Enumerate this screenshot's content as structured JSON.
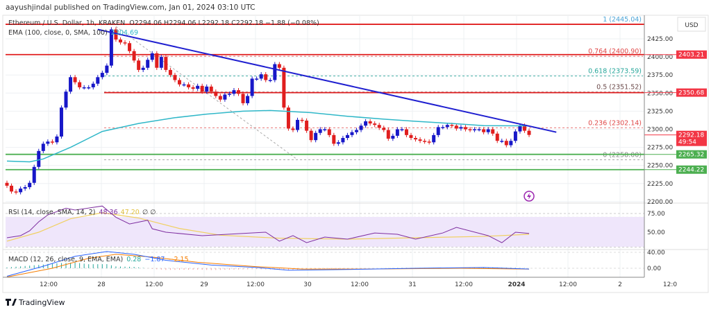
{
  "header": {
    "published": "aayushjindal published on TradingView.com, Jan 01, 2024 03:10 UTC"
  },
  "legend": {
    "symbol": "Ethereum / U.S. Dollar, 1h, KRAKEN",
    "ohlc": "O2294.06  H2294.06  L2292.18  C2292.18  −1.88 (−0.08%)",
    "ema_label": "EMA (100, close, 0, SMA, 100)",
    "ema_value": "2304.69",
    "rsi_label": "RSI (14, close, SMA, 14, 2)",
    "rsi_value": "48.36",
    "rsi_ma_value": "47.20",
    "rsi_extra": "∅  ∅",
    "macd_label": "MACD (12, 26, close, 9, EMA, EMA)",
    "macd_hist": "0.28",
    "macd_value": "−1.87",
    "macd_signal": "−2.15"
  },
  "price_axis": {
    "currency": "USD",
    "ticks": [
      "2425.00",
      "2400.00",
      "2375.00",
      "2350.00",
      "2325.00",
      "2300.00",
      "2275.00",
      "2250.00",
      "2225.00",
      "2200.00"
    ],
    "tags": [
      {
        "label": "2403.21",
        "price": 2403.21,
        "color": "#f23645"
      },
      {
        "label": "2350.68",
        "price": 2350.68,
        "color": "#f23645"
      },
      {
        "label": "2292.18",
        "price": 2292.18,
        "color": "#f23645",
        "sub": "49:54"
      },
      {
        "label": "2265.32",
        "price": 2265.32,
        "color": "#4caf50"
      },
      {
        "label": "2244.22",
        "price": 2244.22,
        "color": "#4caf50"
      }
    ]
  },
  "rsi_axis": {
    "ticks": [
      "75.00",
      "50.00"
    ]
  },
  "macd_axis": {
    "ticks": [
      "40.00",
      "0.00"
    ]
  },
  "time_axis": {
    "labels": [
      "12:00",
      "28",
      "12:00",
      "29",
      "12:00",
      "30",
      "12:00",
      "31",
      "12:00",
      "2024",
      "12:00",
      "2",
      "12:0"
    ]
  },
  "levels": {
    "red": [
      2445.04,
      2403.21,
      2350.68
    ],
    "green": [
      2265.32,
      2244.22
    ]
  },
  "fib": [
    {
      "label": "1 (2445.04)",
      "price": 2445.04,
      "color": "#4ba3d6"
    },
    {
      "label": "0.764 (2400.90)",
      "price": 2400.9,
      "color": "#e04848"
    },
    {
      "label": "0.618 (2373.59)",
      "price": 2373.59,
      "color": "#26a69a"
    },
    {
      "label": "0.5 (2351.52)",
      "price": 2351.52,
      "color": "#6b4a4a"
    },
    {
      "label": "0.236 (2302.14)",
      "price": 2302.14,
      "color": "#e04848"
    },
    {
      "label": "0 (2258.00)",
      "price": 2258.0,
      "color": "#888888"
    }
  ],
  "colors": {
    "up": "#1717c8",
    "down": "#e01e1e",
    "ema": "#2fb7c8",
    "trend": "#1f1fd0",
    "rsi": "#7e2ea0",
    "rsi_ma": "#f0d060",
    "macd": "#2962ff",
    "signal": "#f57c00",
    "hist_up": "#26a69a"
  },
  "footer": {
    "brand": "TradingView"
  },
  "chart_data": {
    "type": "candlestick",
    "interval": "1h",
    "ylim": [
      2200,
      2450
    ],
    "closes": [
      2222,
      2214,
      2213,
      2218,
      2220,
      2226,
      2248,
      2270,
      2280,
      2283,
      2282,
      2290,
      2330,
      2352,
      2372,
      2365,
      2358,
      2358,
      2358,
      2363,
      2372,
      2378,
      2388,
      2438,
      2424,
      2420,
      2419,
      2408,
      2395,
      2382,
      2385,
      2396,
      2405,
      2385,
      2400,
      2382,
      2375,
      2368,
      2362,
      2362,
      2358,
      2356,
      2360,
      2352,
      2359,
      2352,
      2346,
      2341,
      2348,
      2349,
      2354,
      2349,
      2336,
      2346,
      2370,
      2370,
      2376,
      2368,
      2368,
      2390,
      2385,
      2330,
      2301,
      2299,
      2313,
      2312,
      2298,
      2285,
      2295,
      2300,
      2300,
      2292,
      2280,
      2282,
      2288,
      2292,
      2296,
      2299,
      2305,
      2311,
      2308,
      2306,
      2302,
      2299,
      2287,
      2291,
      2300,
      2300,
      2292,
      2288,
      2286,
      2284,
      2283,
      2282,
      2292,
      2303,
      2303,
      2306,
      2305,
      2301,
      2303,
      2300,
      2299,
      2300,
      2300,
      2296,
      2300,
      2294,
      2284,
      2284,
      2278,
      2284,
      2297,
      2305,
      2298,
      2292.18
    ],
    "ema100": [
      [
        0,
        2256
      ],
      [
        5,
        2255
      ],
      [
        8,
        2259
      ],
      [
        14,
        2275
      ],
      [
        21,
        2297
      ],
      [
        29,
        2308
      ],
      [
        37,
        2316
      ],
      [
        44,
        2321
      ],
      [
        52,
        2325
      ],
      [
        58,
        2326
      ],
      [
        67,
        2323
      ],
      [
        75,
        2318
      ],
      [
        83,
        2314
      ],
      [
        90,
        2311
      ],
      [
        98,
        2308
      ],
      [
        105,
        2305
      ],
      [
        115,
        2304.69
      ]
    ],
    "trendline": [
      [
        20,
        2438
      ],
      [
        121,
        2296
      ]
    ],
    "fib_diagonal": [
      [
        24,
        2442
      ],
      [
        64,
        2258
      ]
    ],
    "rsi": [
      [
        0,
        42.6
      ],
      [
        3,
        45.4
      ],
      [
        5,
        51.9
      ],
      [
        7,
        63.9
      ],
      [
        9,
        73.1
      ],
      [
        13,
        82
      ],
      [
        15,
        79.6
      ],
      [
        21,
        85
      ],
      [
        24,
        70
      ],
      [
        27,
        61
      ],
      [
        31,
        66
      ],
      [
        32,
        54.6
      ],
      [
        35,
        50
      ],
      [
        43,
        45.4
      ],
      [
        57,
        50
      ],
      [
        60,
        38
      ],
      [
        63,
        45.4
      ],
      [
        66,
        36
      ],
      [
        70,
        43.5
      ],
      [
        75,
        40.7
      ],
      [
        81,
        49
      ],
      [
        86,
        47.2
      ],
      [
        90,
        40.7
      ],
      [
        96,
        49
      ],
      [
        99,
        56.5
      ],
      [
        106,
        45.4
      ],
      [
        109,
        36
      ],
      [
        112,
        50
      ],
      [
        115,
        48.36
      ]
    ],
    "rsi_ma": [
      [
        0,
        38
      ],
      [
        7,
        50
      ],
      [
        14,
        68
      ],
      [
        21,
        76
      ],
      [
        29,
        69
      ],
      [
        38,
        55
      ],
      [
        47,
        46
      ],
      [
        60,
        42
      ],
      [
        75,
        40.7
      ],
      [
        90,
        42.6
      ],
      [
        105,
        44.4
      ],
      [
        115,
        47.2
      ]
    ],
    "macd": [
      [
        0,
        -20
      ],
      [
        8,
        5
      ],
      [
        15,
        30
      ],
      [
        22,
        42
      ],
      [
        28,
        35
      ],
      [
        35,
        20
      ],
      [
        45,
        8
      ],
      [
        55,
        2
      ],
      [
        62,
        -5
      ],
      [
        70,
        -4
      ],
      [
        90,
        0
      ],
      [
        105,
        2
      ],
      [
        115,
        -1.87
      ]
    ],
    "signal": [
      [
        0,
        -22
      ],
      [
        10,
        0
      ],
      [
        18,
        25
      ],
      [
        24,
        35
      ],
      [
        32,
        28
      ],
      [
        42,
        15
      ],
      [
        55,
        4
      ],
      [
        65,
        -2
      ],
      [
        80,
        -2
      ],
      [
        100,
        0
      ],
      [
        115,
        -2.15
      ]
    ]
  }
}
